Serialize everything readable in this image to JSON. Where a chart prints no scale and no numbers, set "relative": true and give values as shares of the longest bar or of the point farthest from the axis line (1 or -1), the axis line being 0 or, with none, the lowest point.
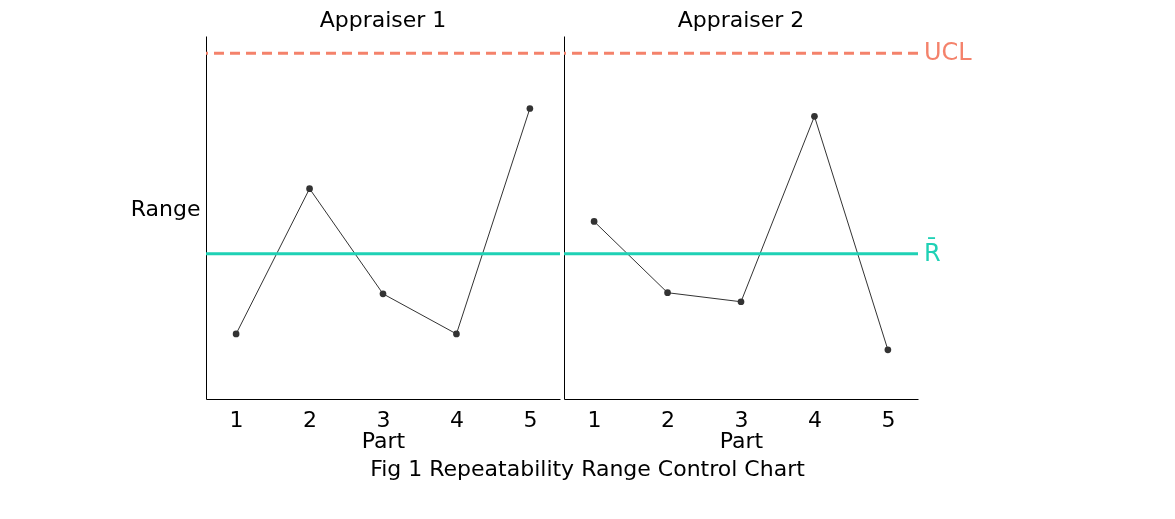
{
  "chart_data": [
    {
      "type": "line",
      "title": "Appraiser 1",
      "xlabel": "Part",
      "ylabel": "Range",
      "relative": true,
      "marker": "circle",
      "categories": [
        "1",
        "2",
        "3",
        "4",
        "5"
      ],
      "series": [
        {
          "color": "#333333",
          "values": [
            0.224,
            0.724,
            0.362,
            0.224,
            1
          ]
        }
      ],
      "ref_lines": [
        {
          "axis": "y",
          "value": 1.19,
          "label": null,
          "color": "#f4826b",
          "line_style": "dashed"
        },
        {
          "axis": "y",
          "value": 0.5,
          "label": null,
          "color": "#1fd1b5",
          "line_style": "solid"
        }
      ],
      "annotations": [
        "Fig 1 Repeatability Range Control Chart"
      ]
    },
    {
      "type": "line",
      "title": "Appraiser 2",
      "xlabel": "Part",
      "relative": true,
      "marker": "circle",
      "categories": [
        "1",
        "2",
        "3",
        "4",
        "5"
      ],
      "series": [
        {
          "color": "#333333",
          "values": [
            0.628,
            0.376,
            0.344,
            1,
            0.174
          ]
        }
      ],
      "ref_lines": [
        {
          "axis": "y",
          "value": 1.223,
          "label": "UCL",
          "color": "#f4826b",
          "line_style": "dashed"
        },
        {
          "axis": "y",
          "value": 0.514,
          "label": "R̄",
          "color": "#1fd1b5",
          "line_style": "solid"
        }
      ]
    }
  ]
}
